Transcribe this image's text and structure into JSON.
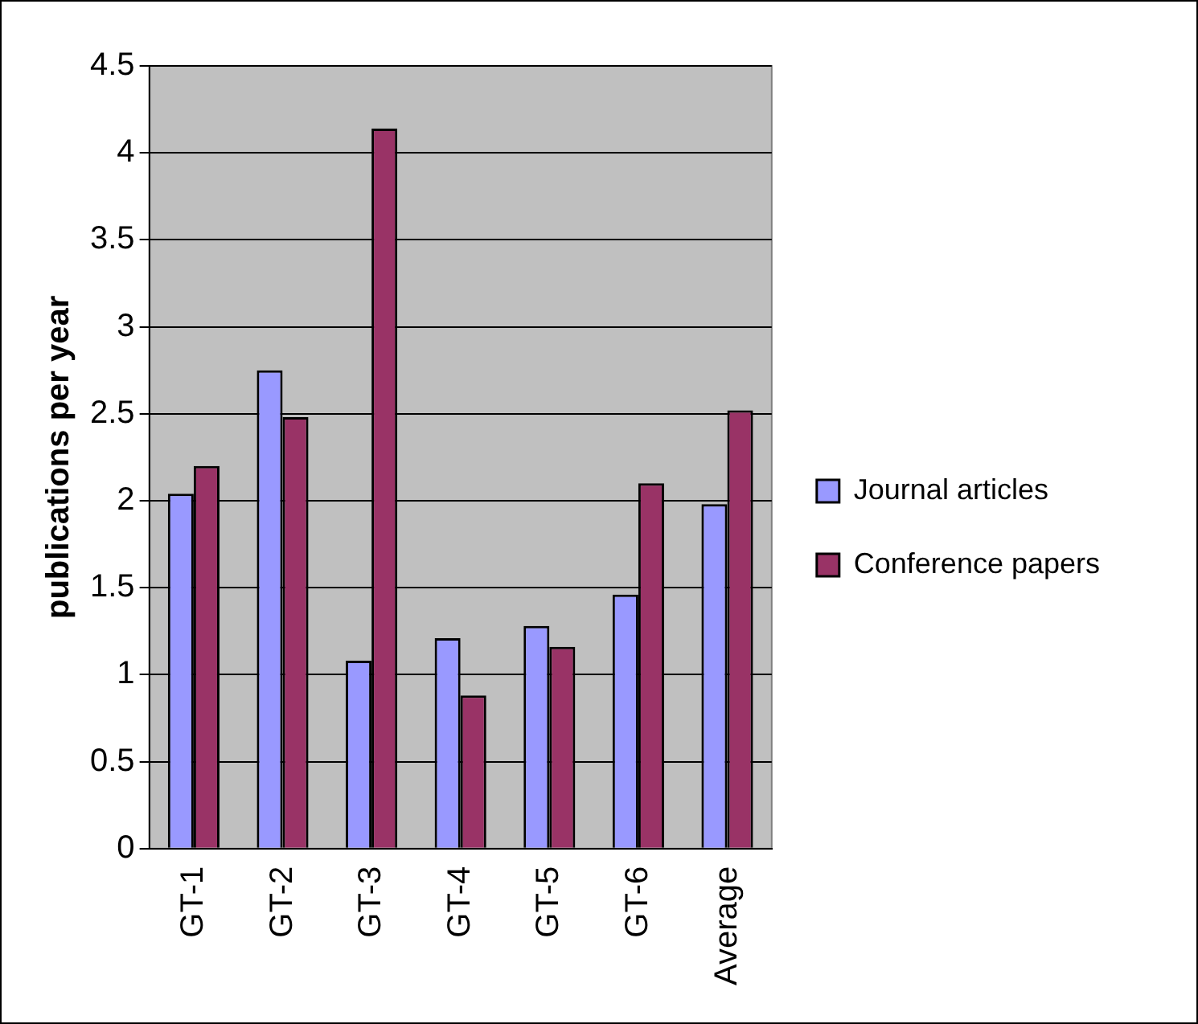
{
  "chart_data": {
    "type": "bar",
    "ylabel": "publications per year",
    "categories": [
      "GT-1",
      "GT-2",
      "GT-3",
      "GT-4",
      "GT-5",
      "GT-6",
      "Average"
    ],
    "series": [
      {
        "name": "Journal articles",
        "color": "#9999ff",
        "values": [
          2.04,
          2.75,
          1.08,
          1.21,
          1.28,
          1.46,
          1.98
        ]
      },
      {
        "name": "Conference papers",
        "color": "#993366",
        "values": [
          2.2,
          2.48,
          4.14,
          0.88,
          1.16,
          2.1,
          2.52
        ]
      }
    ],
    "ylim": [
      0,
      4.5
    ],
    "yticks": [
      0,
      0.5,
      1,
      1.5,
      2,
      2.5,
      3,
      3.5,
      4,
      4.5
    ],
    "grid": "y",
    "legend": "right"
  }
}
